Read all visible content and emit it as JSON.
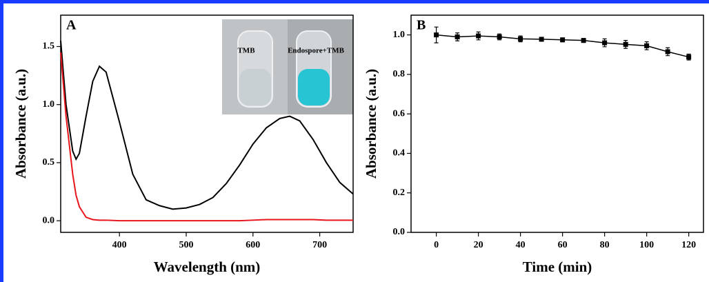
{
  "chart_data": [
    {
      "type": "line",
      "panel_label": "A",
      "x_label": "Wavelength (nm)",
      "y_label": "Absorbance (a.u.)",
      "inset_labels": [
        "TMB",
        "Endospore+TMB"
      ],
      "x": [
        312,
        320,
        330,
        335,
        340,
        350,
        360,
        370,
        380,
        400,
        420,
        440,
        460,
        480,
        500,
        520,
        540,
        560,
        580,
        600,
        620,
        640,
        655,
        670,
        690,
        710,
        730,
        750
      ],
      "series": [
        {
          "color": "#000000",
          "values": [
            1.55,
            1.0,
            0.6,
            0.53,
            0.58,
            0.9,
            1.2,
            1.33,
            1.28,
            0.85,
            0.4,
            0.18,
            0.13,
            0.1,
            0.11,
            0.14,
            0.2,
            0.32,
            0.48,
            0.66,
            0.8,
            0.88,
            0.9,
            0.86,
            0.7,
            0.5,
            0.33,
            0.23
          ]
        },
        {
          "color": "#e8141a",
          "values": [
            1.45,
            0.9,
            0.4,
            0.22,
            0.12,
            0.03,
            0.01,
            0.005,
            0.005,
            0,
            0,
            0,
            0,
            0,
            0,
            0,
            0,
            0,
            0,
            0.005,
            0.01,
            0.01,
            0.01,
            0.01,
            0.01,
            0.005,
            0.005,
            0.005
          ]
        }
      ],
      "xlim": [
        312,
        750
      ],
      "ylim": [
        -0.1,
        1.77
      ],
      "xticks": [
        400,
        500,
        600,
        700
      ],
      "yticks": [
        {
          "value": 0,
          "label": "0.0"
        },
        {
          "value": 0.5,
          "label": "0.5"
        },
        {
          "value": 1,
          "label": "1.0"
        },
        {
          "value": 1.5,
          "label": "1.5"
        }
      ]
    },
    {
      "type": "errorline",
      "panel_label": "B",
      "x_label": "Time (min)",
      "y_label": "Absorbance (a.u.)",
      "x": [
        0,
        10,
        20,
        30,
        40,
        50,
        60,
        70,
        80,
        90,
        100,
        110,
        120
      ],
      "series": [
        {
          "color": "#000000",
          "values": [
            1.0,
            0.99,
            0.995,
            0.99,
            0.98,
            0.978,
            0.975,
            0.972,
            0.96,
            0.952,
            0.945,
            0.915,
            0.888
          ],
          "errors": [
            0.04,
            0.02,
            0.02,
            0.015,
            0.015,
            0.01,
            0.01,
            0.01,
            0.02,
            0.02,
            0.02,
            0.02,
            0.015
          ]
        }
      ],
      "xlim": [
        -12,
        127
      ],
      "ylim": [
        0,
        1.1
      ],
      "xticks": [
        0,
        20,
        40,
        60,
        80,
        100,
        120
      ],
      "yticks": [
        {
          "value": 0,
          "label": "0.0"
        },
        {
          "value": 0.2,
          "label": "0.2"
        },
        {
          "value": 0.4,
          "label": "0.4"
        },
        {
          "value": 0.6,
          "label": "0.6"
        },
        {
          "value": 0.8,
          "label": "0.8"
        },
        {
          "value": 1,
          "label": "1.0"
        }
      ]
    }
  ]
}
